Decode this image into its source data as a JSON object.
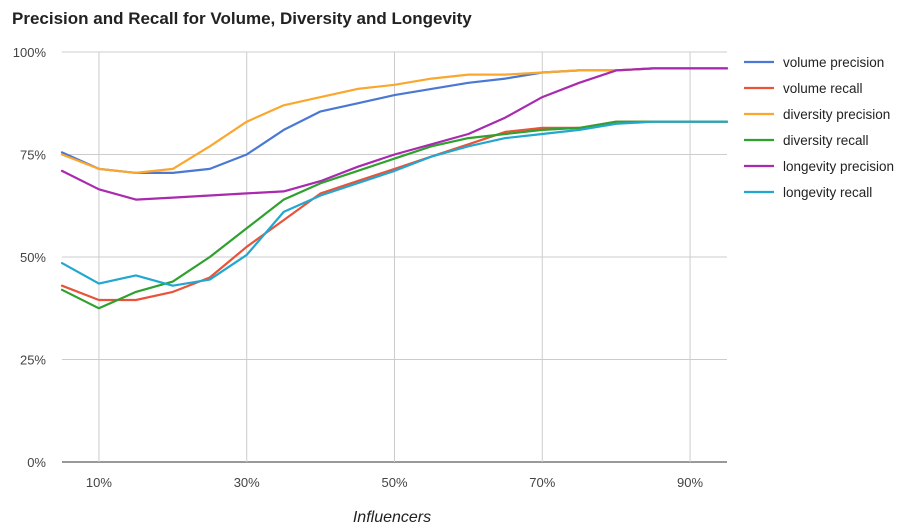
{
  "chart_data": {
    "type": "line",
    "title": "Precision and Recall for Volume, Diversity and Longevity",
    "xlabel": "Influencers",
    "ylabel": "",
    "x": [
      5,
      10,
      15,
      20,
      25,
      30,
      35,
      40,
      45,
      50,
      55,
      60,
      65,
      70,
      75,
      80,
      85,
      90,
      95
    ],
    "x_ticks": [
      10,
      30,
      50,
      70,
      90
    ],
    "x_tick_labels": [
      "10%",
      "30%",
      "50%",
      "70%",
      "90%"
    ],
    "xlim": [
      5,
      95
    ],
    "y_ticks": [
      0,
      25,
      50,
      75,
      100
    ],
    "y_tick_labels": [
      "0%",
      "25%",
      "50%",
      "75%",
      "100%"
    ],
    "ylim": [
      0,
      100
    ],
    "grid": true,
    "legend_position": "right",
    "series": [
      {
        "name": "volume precision",
        "color": "#4a78d4",
        "values": [
          75.5,
          71.5,
          70.5,
          70.5,
          71.5,
          75.0,
          81.0,
          85.5,
          87.5,
          89.5,
          91.0,
          92.5,
          93.5,
          95.0,
          95.5,
          95.5,
          96.0,
          96.0,
          96.0
        ]
      },
      {
        "name": "volume recall",
        "color": "#e8533a",
        "values": [
          43.0,
          39.5,
          39.5,
          41.5,
          45.0,
          52.5,
          59.0,
          65.5,
          68.5,
          71.5,
          74.5,
          77.5,
          80.5,
          81.5,
          81.5,
          83.0,
          83.0,
          83.0,
          83.0
        ]
      },
      {
        "name": "diversity precision",
        "color": "#fba72d",
        "values": [
          75.0,
          71.5,
          70.5,
          71.5,
          77.0,
          83.0,
          87.0,
          89.0,
          91.0,
          92.0,
          93.5,
          94.5,
          94.5,
          95.0,
          95.5,
          95.5,
          96.0,
          96.0,
          96.0
        ]
      },
      {
        "name": "diversity recall",
        "color": "#2ea12e",
        "values": [
          42.0,
          37.5,
          41.5,
          44.0,
          50.0,
          57.0,
          64.0,
          68.0,
          71.0,
          74.0,
          77.0,
          79.0,
          80.0,
          81.0,
          81.5,
          83.0,
          83.0,
          83.0,
          83.0
        ]
      },
      {
        "name": "longevity precision",
        "color": "#a92aae",
        "values": [
          71.0,
          66.5,
          64.0,
          64.5,
          65.0,
          65.5,
          66.0,
          68.5,
          72.0,
          75.0,
          77.5,
          80.0,
          84.0,
          89.0,
          92.5,
          95.5,
          96.0,
          96.0,
          96.0
        ]
      },
      {
        "name": "longevity recall",
        "color": "#22a7d0",
        "values": [
          48.5,
          43.5,
          45.5,
          43.0,
          44.5,
          50.5,
          61.0,
          65.0,
          68.0,
          71.0,
          74.5,
          77.0,
          79.0,
          80.0,
          81.0,
          82.5,
          83.0,
          83.0,
          83.0
        ]
      }
    ]
  }
}
